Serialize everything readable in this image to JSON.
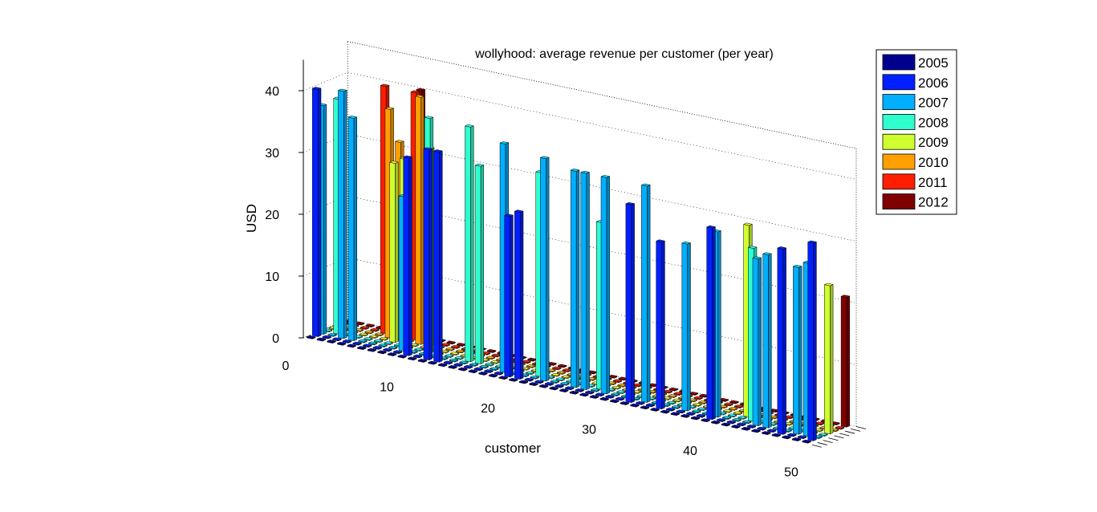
{
  "chart_data": {
    "type": "bar",
    "variant": "3d-bar",
    "title": "wollyhood: average revenue per customer (per year)",
    "xlabel": "customer",
    "ylabel": "USD",
    "zlabel": "",
    "x_ticks": [
      "0",
      "10",
      "20",
      "30",
      "40",
      "50"
    ],
    "y_ticks": [
      "0",
      "10",
      "20",
      "30",
      "40"
    ],
    "ylim": [
      0,
      40
    ],
    "xlim": [
      0,
      50
    ],
    "legend_position": "top-right",
    "categories": [
      "1",
      "2",
      "3",
      "4",
      "5",
      "6",
      "7",
      "8",
      "9",
      "10",
      "11",
      "12",
      "13",
      "14",
      "15",
      "16",
      "17",
      "18",
      "19",
      "20",
      "21",
      "22",
      "23",
      "24",
      "25",
      "26",
      "27",
      "28",
      "29",
      "30",
      "31",
      "32",
      "33",
      "34",
      "35",
      "36",
      "37",
      "38",
      "39",
      "40",
      "41",
      "42",
      "43",
      "44",
      "45",
      "46",
      "47",
      "48",
      "49",
      "50"
    ],
    "series": [
      {
        "name": "2005",
        "color": "#00008f",
        "values": [
          0,
          0,
          0,
          0,
          0,
          0,
          0,
          0,
          0,
          0,
          0,
          0,
          0,
          0,
          0,
          0,
          0,
          0,
          0,
          0,
          0,
          0,
          0,
          0,
          0,
          0,
          0,
          0,
          0,
          0,
          0,
          0,
          0,
          0,
          0,
          0,
          0,
          0,
          0,
          0,
          0,
          0,
          0,
          0,
          0,
          0,
          0,
          0,
          0,
          0
        ]
      },
      {
        "name": "2006",
        "color": "#0020ff",
        "values": [
          40,
          0,
          0,
          0,
          0,
          0,
          0,
          0,
          0,
          32,
          0,
          34,
          34,
          0,
          0,
          0,
          0,
          0,
          0,
          26,
          27,
          0,
          0,
          0,
          0,
          0,
          0,
          0,
          0,
          0,
          0,
          32,
          0,
          0,
          27,
          0,
          0,
          0,
          0,
          31,
          0,
          0,
          0,
          0,
          0,
          0,
          30,
          0,
          0,
          32
        ]
      },
      {
        "name": "2007",
        "color": "#00afff",
        "values": [
          37,
          0,
          40,
          36,
          0,
          0,
          0,
          0,
          25,
          0,
          0,
          0,
          0,
          0,
          0,
          0,
          0,
          0,
          37,
          0,
          0,
          0,
          36,
          0,
          0,
          35,
          35,
          0,
          35,
          0,
          0,
          0,
          35,
          0,
          0,
          0,
          27,
          0,
          0,
          30,
          0,
          0,
          0,
          27,
          28,
          0,
          0,
          27,
          28,
          0
        ]
      },
      {
        "name": "2008",
        "color": "#2fffcf",
        "values": [
          0,
          38,
          0,
          0,
          0,
          0,
          0,
          0,
          0,
          0,
          38,
          0,
          0,
          0,
          38,
          32,
          0,
          0,
          0,
          0,
          0,
          33,
          0,
          0,
          0,
          0,
          0,
          27,
          0,
          0,
          0,
          0,
          0,
          0,
          0,
          0,
          0,
          0,
          0,
          0,
          0,
          0,
          28,
          0,
          0,
          0,
          0,
          0,
          0,
          0
        ]
      },
      {
        "name": "2009",
        "color": "#cfff2f",
        "values": [
          0,
          0,
          0,
          0,
          0,
          0,
          29,
          30,
          0,
          0,
          0,
          0,
          0,
          0,
          0,
          0,
          0,
          0,
          0,
          0,
          0,
          0,
          0,
          0,
          0,
          0,
          0,
          0,
          0,
          0,
          0,
          0,
          0,
          0,
          0,
          0,
          0,
          0,
          0,
          0,
          0,
          31,
          0,
          0,
          0,
          0,
          0,
          0,
          0,
          24
        ]
      },
      {
        "name": "2010",
        "color": "#ff9f00",
        "values": [
          0,
          0,
          0,
          0,
          0,
          37,
          32,
          0,
          40,
          32,
          0,
          0,
          0,
          0,
          0,
          0,
          0,
          0,
          0,
          0,
          0,
          0,
          0,
          0,
          0,
          0,
          0,
          0,
          0,
          0,
          0,
          0,
          0,
          0,
          0,
          0,
          0,
          0,
          0,
          0,
          0,
          0,
          0,
          0,
          0,
          0,
          0,
          0,
          0,
          0
        ]
      },
      {
        "name": "2011",
        "color": "#ff1f00",
        "values": [
          0,
          0,
          0,
          0,
          40,
          0,
          0,
          40,
          0,
          0,
          0,
          0,
          0,
          0,
          0,
          0,
          0,
          0,
          0,
          0,
          0,
          0,
          0,
          0,
          0,
          0,
          0,
          0,
          0,
          0,
          0,
          0,
          0,
          0,
          0,
          0,
          0,
          0,
          0,
          0,
          0,
          0,
          0,
          0,
          0,
          0,
          0,
          0,
          0,
          0
        ]
      },
      {
        "name": "2012",
        "color": "#7f0000",
        "values": [
          0,
          0,
          0,
          0,
          0,
          0,
          0,
          40,
          0,
          0,
          0,
          0,
          0,
          0,
          0,
          0,
          0,
          0,
          0,
          0,
          0,
          0,
          0,
          0,
          0,
          0,
          0,
          0,
          0,
          0,
          0,
          0,
          0,
          0,
          0,
          0,
          0,
          0,
          0,
          0,
          0,
          0,
          0,
          0,
          0,
          0,
          0,
          0,
          0,
          21
        ]
      }
    ]
  }
}
